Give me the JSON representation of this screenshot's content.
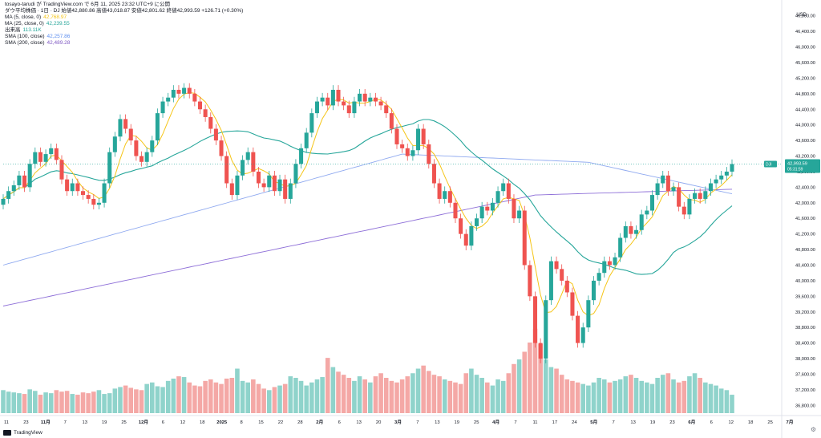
{
  "header": {
    "topline": "tosayo-tarudi が TradingView.com で 6月 11, 2025 23:32 UTC+9 に公開",
    "title_line": "ダウ平均株価 · 1日 · DJ  始値42,880.86  高値43,018.87  安値42,801.62  終値42,993.59  +126.71 (+0.30%)",
    "indicators": [
      {
        "label": "MA (5, close, 0)",
        "value": "42,768.97",
        "color": "#f5c518"
      },
      {
        "label": "MA (25, close, 0)",
        "value": "42,239.55",
        "color": "#26a69a"
      },
      {
        "label": "出来高",
        "value": "113.11K",
        "color": "#26a69a"
      },
      {
        "label": "SMA (100, close)",
        "value": "42,257.86",
        "color": "#5b8def"
      },
      {
        "label": "SMA (200, close)",
        "value": "42,489.28",
        "color": "#7e57c2"
      }
    ]
  },
  "currency": "USD",
  "brand": "TradingView",
  "colors": {
    "up": "#26a69a",
    "down": "#ef5350",
    "up_vol": "#8fd3cb",
    "down_vol": "#f4a8a6",
    "ma5": "#f5c518",
    "ma25": "#26a69a",
    "sma100": "#90aaf0",
    "sma200": "#8e6fd8"
  },
  "price_tag": {
    "label": "DJI",
    "value": "42,993.59",
    "sub": "05:31:59"
  },
  "chart_data": {
    "type": "candlestick",
    "y_ticks": [
      "46,800.00",
      "46,400.00",
      "46,000.00",
      "45,600.00",
      "45,200.00",
      "44,800.00",
      "44,400.00",
      "44,000.00",
      "43,600.00",
      "43,200.00",
      "42,800.00",
      "42,400.00",
      "42,000.00",
      "41,600.00",
      "41,200.00",
      "40,800.00",
      "40,400.00",
      "40,000.00",
      "39,600.00",
      "39,200.00",
      "38,800.00",
      "38,400.00",
      "38,000.00",
      "37,600.00",
      "37,200.00",
      "36,800.00"
    ],
    "ylim": [
      36600,
      47000
    ],
    "x_labels": [
      "11",
      "23",
      "11月",
      "7",
      "13",
      "19",
      "25",
      "12月",
      "6",
      "12",
      "18",
      "2025",
      "8",
      "15",
      "22",
      "28",
      "2月",
      "6",
      "13",
      "20",
      "3月",
      "7",
      "13",
      "19",
      "25",
      "4月",
      "7",
      "11",
      "17",
      "24",
      "5月",
      "7",
      "13",
      "19",
      "23",
      "6月",
      "6",
      "12",
      "18",
      "25",
      "7月"
    ],
    "current_price": 42993.59,
    "closes": [
      42100,
      42300,
      42450,
      42700,
      42400,
      43000,
      43300,
      43050,
      43250,
      43400,
      43100,
      42600,
      42300,
      42500,
      42300,
      42200,
      42100,
      41950,
      42000,
      42500,
      43300,
      43700,
      44150,
      43900,
      43600,
      43200,
      43050,
      43300,
      43600,
      44300,
      44600,
      44700,
      44900,
      44800,
      44950,
      44800,
      44600,
      44400,
      44200,
      43900,
      43600,
      43200,
      42500,
      42200,
      42700,
      43100,
      43300,
      42800,
      42500,
      42400,
      42700,
      42300,
      42600,
      42100,
      42500,
      43000,
      43400,
      43800,
      44300,
      44600,
      44700,
      44500,
      44900,
      44600,
      44500,
      44300,
      44600,
      44800,
      44600,
      44700,
      44600,
      44500,
      44300,
      43900,
      43500,
      43400,
      43200,
      43350,
      43900,
      43500,
      43000,
      42500,
      42100,
      42300,
      42000,
      41600,
      41200,
      40900,
      41400,
      41600,
      41900,
      41800,
      42000,
      42300,
      42500,
      42100,
      41600,
      41800,
      40400,
      39600,
      38400,
      38000,
      39500,
      40500,
      40300,
      40000,
      39700,
      39100,
      38400,
      38800,
      39500,
      40000,
      40200,
      40500,
      40400,
      40600,
      41100,
      41400,
      41200,
      41300,
      41700,
      41800,
      42200,
      42500,
      42700,
      42300,
      42400,
      41900,
      41700,
      42100,
      42250,
      42100,
      42300,
      42500,
      42600,
      42700,
      42800,
      42993.59
    ],
    "volumes": [
      30,
      28,
      27,
      26,
      25,
      31,
      29,
      24,
      27,
      26,
      30,
      28,
      29,
      25,
      24,
      27,
      26,
      28,
      30,
      25,
      26,
      32,
      34,
      36,
      33,
      31,
      30,
      38,
      40,
      35,
      34,
      42,
      45,
      48,
      47,
      40,
      36,
      35,
      42,
      44,
      40,
      38,
      45,
      46,
      58,
      42,
      40,
      44,
      38,
      32,
      30,
      34,
      36,
      38,
      48,
      46,
      42,
      36,
      40,
      44,
      47,
      72,
      60,
      54,
      50,
      46,
      42,
      48,
      44,
      40,
      48,
      52,
      46,
      42,
      40,
      44,
      48,
      52,
      58,
      62,
      55,
      50,
      48,
      44,
      42,
      40,
      38,
      52,
      58,
      50,
      46,
      40,
      36,
      44,
      42,
      52,
      64,
      70,
      80,
      92,
      110,
      90,
      70,
      60,
      58,
      50,
      44,
      42,
      40,
      38,
      36,
      40,
      46,
      44,
      40,
      42,
      44,
      48,
      50,
      46,
      42,
      40,
      38,
      46,
      50,
      52,
      44,
      40,
      42,
      48,
      52,
      46,
      40,
      38,
      36,
      32,
      30,
      24
    ]
  }
}
